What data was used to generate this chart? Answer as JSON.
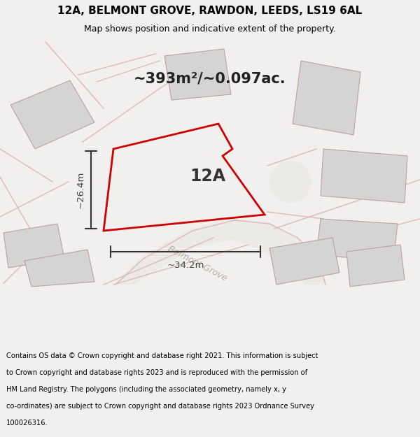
{
  "title_line1": "12A, BELMONT GROVE, RAWDON, LEEDS, LS19 6AL",
  "title_line2": "Map shows position and indicative extent of the property.",
  "area_text": "~393m²/~0.097ac.",
  "label_12A": "12A",
  "dim_width": "~34.2m",
  "dim_height": "~26.4m",
  "street_label": "Belmont Grove",
  "footer_lines": [
    "Contains OS data © Crown copyright and database right 2021. This information is subject",
    "to Crown copyright and database rights 2023 and is reproduced with the permission of",
    "HM Land Registry. The polygons (including the associated geometry, namely x, y",
    "co-ordinates) are subject to Crown copyright and database rights 2023 Ordnance Survey",
    "100026316."
  ],
  "bg_color": "#f2f0ee",
  "map_bg": "#f2f0ee",
  "plot_color": "#cc0000",
  "nearby_fill": "#d4d4d4",
  "nearby_stroke": "#c0a0a0",
  "road_line_color": "#e0b8b8",
  "footer_bg": "#ffffff"
}
